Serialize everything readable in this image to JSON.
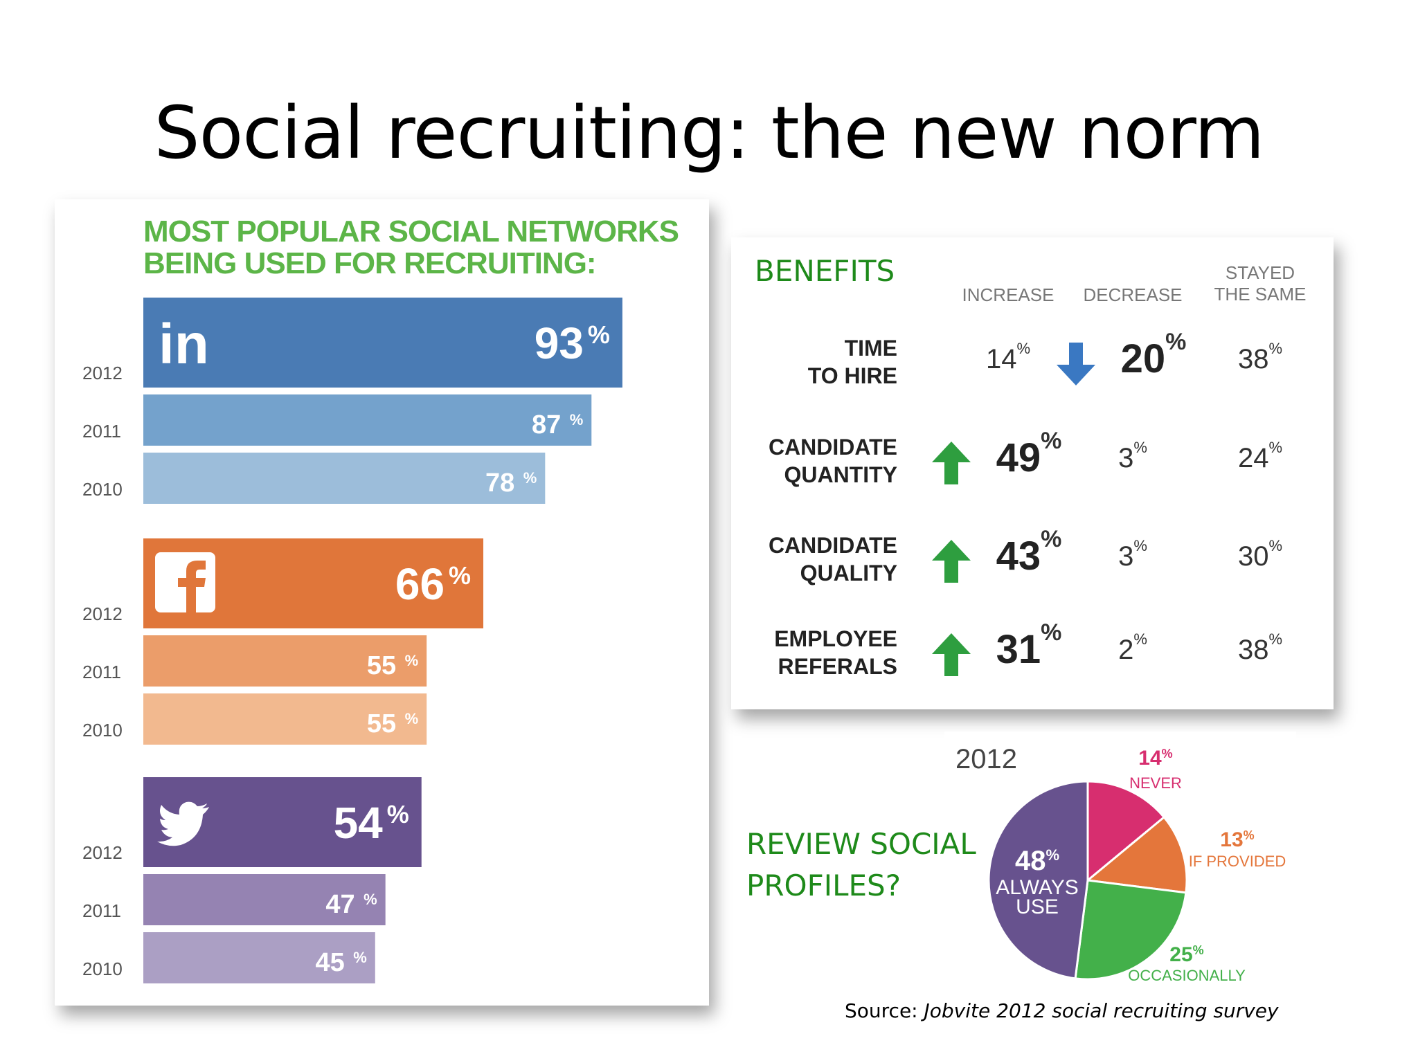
{
  "slide": {
    "title": "Social recruiting: the new norm",
    "source_prefix": "Source:",
    "source_title": "Jobvite 2012 social recruiting survey"
  },
  "networks_panel": {
    "heading_line1": "MOST POPULAR SOCIAL NETWORKS",
    "heading_line2": "BEING USED FOR RECRUITING:",
    "linkedin_logo_text": "in"
  },
  "benefits": {
    "title": "BENEFITS",
    "columns": [
      "INCREASE",
      "DECREASE",
      "STAYED THE SAME"
    ],
    "rows": [
      {
        "label_line1": "TIME",
        "label_line2": "TO HIRE",
        "increase": "14",
        "decrease": "20",
        "same": "38",
        "highlight": "decrease"
      },
      {
        "label_line1": "CANDIDATE",
        "label_line2": "QUANTITY",
        "increase": "49",
        "decrease": "3",
        "same": "24",
        "highlight": "increase"
      },
      {
        "label_line1": "CANDIDATE",
        "label_line2": "QUALITY",
        "increase": "43",
        "decrease": "3",
        "same": "30",
        "highlight": "increase"
      },
      {
        "label_line1": "EMPLOYEE",
        "label_line2": "REFERALS",
        "increase": "31",
        "decrease": "2",
        "same": "38",
        "highlight": "increase"
      }
    ],
    "pct": "%",
    "colors": {
      "up_arrow": "#2e9e3f",
      "down_arrow": "#3a78c2"
    }
  },
  "review": {
    "question_line1": "REVIEW SOCIAL",
    "question_line2": "PROFILES?"
  },
  "chart_data": [
    {
      "type": "bar",
      "orientation": "horizontal",
      "title": "MOST POPULAR SOCIAL NETWORKS BEING USED FOR RECRUITING:",
      "categories": [
        "2012",
        "2011",
        "2010"
      ],
      "series": [
        {
          "name": "LinkedIn",
          "icon": "linkedin-icon",
          "values": [
            93,
            87,
            78
          ],
          "colors": [
            "#4a7bb4",
            "#74a2cc",
            "#9cbdda"
          ]
        },
        {
          "name": "Facebook",
          "icon": "facebook-icon",
          "values": [
            66,
            55,
            55
          ],
          "colors": [
            "#e0763a",
            "#eb9d6a",
            "#f2b98f"
          ]
        },
        {
          "name": "Twitter",
          "icon": "twitter-icon",
          "values": [
            54,
            47,
            45
          ],
          "colors": [
            "#67528e",
            "#9583b2",
            "#ab9fc4"
          ]
        }
      ],
      "unit": "%",
      "xlim": [
        0,
        100
      ]
    },
    {
      "type": "pie",
      "title": "2012",
      "slices": [
        {
          "label": "NEVER",
          "value": 14,
          "color": "#d72e6f"
        },
        {
          "label": "IF PROVIDED",
          "value": 13,
          "color": "#e4763b"
        },
        {
          "label": "OCCASIONALLY",
          "value": 25,
          "color": "#43b04a"
        },
        {
          "label": "ALWAYS USE",
          "value": 48,
          "color": "#67528e"
        }
      ],
      "unit": "%",
      "label_colors": {
        "NEVER": "#d72e6f",
        "IF PROVIDED": "#e4763b",
        "OCCASIONALLY": "#43b04a",
        "ALWAYS USE": "#ffffff"
      }
    }
  ]
}
